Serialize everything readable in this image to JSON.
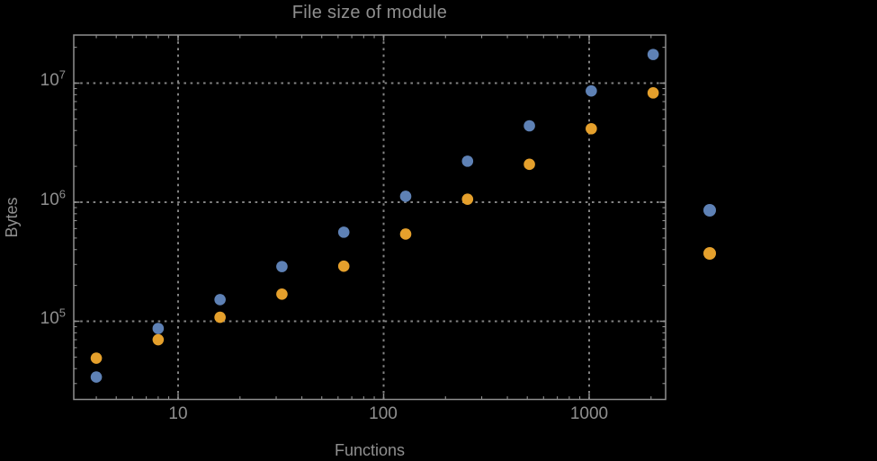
{
  "title": "File size of module",
  "axes": {
    "x": {
      "label": "Functions",
      "scale": "log",
      "tick_labels": [
        "10",
        "100",
        "1000"
      ]
    },
    "y": {
      "label": "Bytes",
      "scale": "log",
      "tick_labels": [
        {
          "base": "10",
          "exp": "5"
        },
        {
          "base": "10",
          "exp": "6"
        },
        {
          "base": "10",
          "exp": "7"
        }
      ]
    }
  },
  "colors": {
    "background": "#000000",
    "text": "#8f8f8f",
    "frame": "#8f8f8f",
    "gridlines": "#838383",
    "series_blue": "#5e81b5",
    "series_orange": "#e5a02c"
  },
  "chart_data": {
    "type": "scatter",
    "title": "File size of module",
    "xlabel": "Functions",
    "ylabel": "Bytes",
    "xscale": "log",
    "yscale": "log",
    "xlim": [
      3.2,
      2350
    ],
    "ylim": [
      22000,
      25000000
    ],
    "grid": {
      "style": "dotted",
      "x_values": [
        10,
        100,
        1000
      ],
      "y_values": [
        100000,
        1000000,
        10000000
      ]
    },
    "x": [
      4,
      8,
      16,
      32,
      64,
      128,
      256,
      512,
      1024,
      2048
    ],
    "series": [
      {
        "name": "blue",
        "color": "#5e81b5",
        "values": [
          34000,
          87000,
          152000,
          288000,
          560000,
          1120000,
          2210000,
          4380000,
          8600000,
          17400000
        ]
      },
      {
        "name": "orange",
        "color": "#e5a02c",
        "values": [
          49000,
          70000,
          108000,
          169000,
          290000,
          540000,
          1060000,
          2080000,
          4140000,
          8280000
        ]
      }
    ],
    "legend": {
      "position": "right-outside",
      "entries": [
        {
          "marker_color": "#5e81b5",
          "label": ""
        },
        {
          "marker_color": "#e5a02c",
          "label": ""
        }
      ]
    }
  }
}
